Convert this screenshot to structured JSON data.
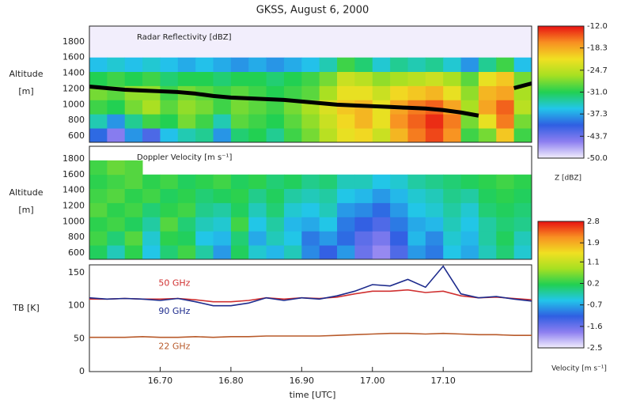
{
  "title": "GKSS, August 6, 2000",
  "chart_data": [
    {
      "type": "heatmap",
      "title": "Radar Reflectivity [dBZ]",
      "ylabel": "Altitude [m]",
      "xlim": [
        16.6,
        17.225
      ],
      "ylim": [
        520,
        2000
      ],
      "yticks": [
        600,
        800,
        1000,
        1200,
        1400,
        1600,
        1800
      ],
      "xbins": [
        16.6,
        16.625,
        16.65,
        16.675,
        16.7,
        16.725,
        16.75,
        16.775,
        16.8,
        16.825,
        16.85,
        16.875,
        16.9,
        16.925,
        16.95,
        16.975,
        17.0,
        17.025,
        17.05,
        17.075,
        17.1,
        17.125,
        17.15,
        17.175,
        17.2,
        17.225
      ],
      "ybins": [
        520,
        700,
        880,
        1060,
        1240,
        1420,
        1600
      ],
      "z": [
        [
          -40,
          -45,
          -38,
          -42,
          -36,
          -34,
          -33,
          -38,
          -32,
          -31,
          -33,
          -30,
          -28,
          -25,
          -22,
          -21,
          -24,
          -19,
          -16,
          -14,
          -17,
          -30,
          -28,
          -20,
          -30
        ],
        [
          -34,
          -38,
          -33,
          -30,
          -31,
          -28,
          -30,
          -34,
          -29,
          -30,
          -31,
          -29,
          -27,
          -24,
          -21,
          -19,
          -22,
          -17,
          -15,
          -13,
          -16,
          -28,
          -22,
          -16,
          -28
        ],
        [
          -30,
          -31,
          -28,
          -26,
          -29,
          -27,
          -28,
          -30,
          -28,
          -29,
          -30,
          -28,
          -26,
          -23,
          -20,
          -19,
          -22,
          -18,
          -16,
          -15,
          -18,
          -26,
          -18,
          -15,
          -25
        ],
        [
          -28,
          -29,
          -27,
          -27,
          -30,
          -28,
          -29,
          -30,
          -29,
          -30,
          -31,
          -30,
          -29,
          -26,
          -22,
          -22,
          -24,
          -21,
          -20,
          -19,
          -22,
          -27,
          -19,
          -18,
          -26
        ],
        [
          -31,
          -30,
          -31,
          -30,
          -32,
          -31,
          -31,
          -32,
          -31,
          -31,
          -32,
          -31,
          -30,
          -28,
          -24,
          -25,
          -27,
          -26,
          -25,
          -24,
          -26,
          -29,
          -22,
          -20,
          -28
        ],
        [
          -36,
          -35,
          -36,
          -35,
          -36,
          -37,
          -36,
          -37,
          -38,
          -37,
          -38,
          -37,
          -36,
          -34,
          -30,
          -32,
          -35,
          -33,
          -34,
          -33,
          -35,
          -38,
          -33,
          -30,
          -36
        ]
      ],
      "line": {
        "color": "#000000",
        "x": [
          16.6,
          16.625,
          16.65,
          16.675,
          16.7,
          16.725,
          16.75,
          16.775,
          16.8,
          16.825,
          16.85,
          16.875,
          16.9,
          16.925,
          16.95,
          16.975,
          17.0,
          17.025,
          17.05,
          17.075,
          17.1,
          17.125,
          17.15,
          17.175,
          17.2,
          17.225
        ],
        "values": [
          1230,
          1210,
          1190,
          1180,
          1170,
          1160,
          1140,
          1110,
          1090,
          1080,
          1070,
          1060,
          1040,
          1020,
          1000,
          990,
          980,
          970,
          960,
          950,
          930,
          900,
          860,
          null,
          1210,
          1270
        ]
      },
      "colormap": [
        "#f2eefc",
        "#8c7ef0",
        "#2f5fe2",
        "#22c6ea",
        "#22d052",
        "#a6e022",
        "#f0e022",
        "#f89022",
        "#e81212"
      ],
      "clim": [
        -50,
        -12
      ],
      "cticks": [
        {
          "value": -12,
          "label": "-12.0"
        },
        -18.3,
        -24.7,
        {
          "value": -31,
          "label": "-31.0"
        },
        -37.3,
        -43.7,
        {
          "value": -50,
          "label": "-50.0"
        }
      ],
      "clabel": "Z [dBZ]"
    },
    {
      "type": "heatmap",
      "title": "Doppler Velocity [m s⁻¹]",
      "ylabel": "Altitude [m]",
      "xlim": [
        16.6,
        17.225
      ],
      "ylim": [
        520,
        1960
      ],
      "yticks": [
        600,
        800,
        1000,
        1200,
        1400,
        1600,
        1800
      ],
      "xbins": [
        16.6,
        16.625,
        16.65,
        16.675,
        16.7,
        16.725,
        16.75,
        16.775,
        16.8,
        16.825,
        16.85,
        16.875,
        16.9,
        16.925,
        16.95,
        16.975,
        17.0,
        17.025,
        17.05,
        17.075,
        17.1,
        17.125,
        17.15,
        17.175,
        17.2,
        17.225
      ],
      "ybins": [
        520,
        700,
        880,
        1060,
        1240,
        1420,
        1600,
        1780
      ],
      "z": [
        [
          0.1,
          -0.3,
          0.2,
          -0.5,
          0.0,
          0.3,
          -0.2,
          -0.8,
          0.1,
          -0.4,
          -0.6,
          -0.3,
          -0.9,
          -1.2,
          -0.8,
          -1.6,
          -1.9,
          -1.4,
          -0.8,
          -1.0,
          -0.5,
          -0.7,
          -0.3,
          0.0,
          -0.4
        ],
        [
          0.3,
          0.0,
          0.4,
          -0.4,
          0.2,
          0.1,
          -0.5,
          -0.6,
          0.0,
          -0.7,
          -0.3,
          -0.5,
          -1.0,
          -0.8,
          -1.1,
          -1.5,
          -1.7,
          -1.2,
          -0.6,
          -0.9,
          -0.4,
          -0.6,
          -0.2,
          0.1,
          -0.3
        ],
        [
          0.2,
          0.3,
          0.1,
          -0.2,
          0.4,
          0.0,
          -0.3,
          -0.4,
          0.3,
          -0.5,
          -0.2,
          -0.6,
          -0.7,
          -0.5,
          -1.0,
          -1.2,
          -1.4,
          -1.0,
          -0.7,
          -0.6,
          -0.3,
          -0.5,
          -0.2,
          0.0,
          -0.1
        ],
        [
          0.4,
          0.2,
          0.3,
          0.0,
          0.2,
          0.3,
          -0.1,
          -0.2,
          0.1,
          -0.3,
          0.0,
          -0.4,
          -0.5,
          -0.3,
          -0.8,
          -0.9,
          -1.1,
          -0.8,
          -0.5,
          -0.4,
          -0.2,
          -0.4,
          0.0,
          0.1,
          0.0
        ],
        [
          0.3,
          0.4,
          0.2,
          0.3,
          0.1,
          0.2,
          0.0,
          0.1,
          0.2,
          -0.1,
          0.1,
          -0.2,
          -0.3,
          -0.2,
          -0.5,
          -0.6,
          -0.8,
          -0.6,
          -0.4,
          -0.3,
          -0.1,
          -0.2,
          0.1,
          0.2,
          0.1
        ],
        [
          0.2,
          0.3,
          0.4,
          0.2,
          0.3,
          0.1,
          0.2,
          0.3,
          0.1,
          0.2,
          0.0,
          0.1,
          -0.1,
          0.0,
          -0.3,
          -0.3,
          -0.5,
          -0.4,
          -0.2,
          -0.1,
          0.0,
          0.1,
          0.2,
          0.3,
          0.2
        ],
        [
          0.3,
          0.5,
          0.4,
          null,
          null,
          null,
          null,
          null,
          null,
          null,
          null,
          null,
          null,
          null,
          null,
          null,
          null,
          null,
          null,
          null,
          null,
          null,
          null,
          null,
          null
        ]
      ],
      "colormap": [
        "#f2eefc",
        "#8c7ef0",
        "#2f5fe2",
        "#22c6ea",
        "#22d052",
        "#a6e022",
        "#f0e022",
        "#f89022",
        "#e81212"
      ],
      "clim": [
        -2.5,
        2.8
      ],
      "cticks": [
        2.8,
        1.9,
        1.1,
        0.2,
        -0.7,
        -1.6,
        -2.5
      ],
      "clabel": "Velocity [m s⁻¹]"
    },
    {
      "type": "line",
      "ylabel": "TB [K]",
      "xlabel": "time [UTC]",
      "xlim": [
        16.6,
        17.225
      ],
      "ylim": [
        0,
        162
      ],
      "yticks": [
        0,
        50,
        100,
        150
      ],
      "xticks": [
        {
          "value": 16.7,
          "label": "16.70"
        },
        {
          "value": 16.8,
          "label": "16.80"
        },
        {
          "value": 16.9,
          "label": "16.90"
        },
        {
          "value": 17.0,
          "label": "17.00"
        },
        {
          "value": 17.1,
          "label": "17.10"
        }
      ],
      "x": [
        16.6,
        16.625,
        16.65,
        16.675,
        16.7,
        16.725,
        16.75,
        16.775,
        16.8,
        16.825,
        16.85,
        16.875,
        16.9,
        16.925,
        16.95,
        16.975,
        17.0,
        17.025,
        17.05,
        17.075,
        17.1,
        17.125,
        17.15,
        17.175,
        17.2,
        17.225
      ],
      "series": [
        {
          "name": "50 GHz",
          "color": "#d03030",
          "values": [
            110,
            110,
            111,
            110,
            110,
            111,
            109,
            106,
            106,
            108,
            112,
            110,
            112,
            111,
            113,
            118,
            122,
            122,
            124,
            120,
            122,
            115,
            112,
            113,
            111,
            109
          ]
        },
        {
          "name": "90 GHz",
          "color": "#1c2a8c",
          "values": [
            112,
            110,
            111,
            110,
            108,
            111,
            106,
            100,
            100,
            104,
            112,
            108,
            112,
            110,
            115,
            122,
            132,
            130,
            140,
            128,
            160,
            118,
            112,
            114,
            110,
            107
          ]
        },
        {
          "name": "22 GHz",
          "color": "#b85a2a",
          "values": [
            52,
            52,
            52,
            53,
            52,
            52,
            53,
            52,
            53,
            53,
            54,
            54,
            54,
            54,
            55,
            56,
            57,
            58,
            58,
            57,
            58,
            57,
            56,
            56,
            55,
            55
          ]
        }
      ]
    }
  ]
}
